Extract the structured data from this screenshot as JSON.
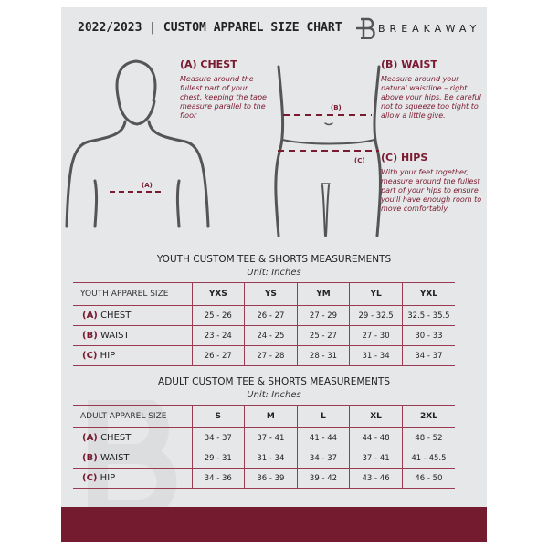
{
  "header": {
    "title": "2022/2023 | CUSTOM APPAREL SIZE CHART",
    "brand": "BREAKAWAY"
  },
  "guide": {
    "chest": {
      "heading": "(A) CHEST",
      "text": "Measure around the fullest part of your chest, keeping the tape measure parallel to the floor",
      "marker": "(A)"
    },
    "waist": {
      "heading": "(B) WAIST",
      "text": "Measure around your natural waistline – right above your hips. Be careful not to squeeze too tight to allow a little give.",
      "marker": "(B)"
    },
    "hips": {
      "heading": "(C) HIPS",
      "text": "With your feet together, measure around the fullest part of your hips to ensure you'll have enough room to move comfortably.",
      "marker": "(C)"
    }
  },
  "youth": {
    "title": "YOUTH CUSTOM TEE & SHORTS MEASUREMENTS",
    "unit": "Unit: Inches",
    "header": "YOUTH APPAREL SIZE",
    "sizes": [
      "YXS",
      "YS",
      "YM",
      "YL",
      "YXL"
    ],
    "rows": [
      {
        "code": "(A)",
        "name": "CHEST",
        "values": [
          "25 - 26",
          "26 - 27",
          "27 - 29",
          "29 - 32.5",
          "32.5 - 35.5"
        ]
      },
      {
        "code": "(B)",
        "name": "WAIST",
        "values": [
          "23 - 24",
          "24 - 25",
          "25 - 27",
          "27 - 30",
          "30 - 33"
        ]
      },
      {
        "code": "(C)",
        "name": "HIP",
        "values": [
          "26 - 27",
          "27 - 28",
          "28 - 31",
          "31 - 34",
          "34 - 37"
        ]
      }
    ]
  },
  "adult": {
    "title": "ADULT CUSTOM TEE & SHORTS MEASUREMENTS",
    "unit": "Unit: Inches",
    "header": "ADULT APPAREL SIZE",
    "sizes": [
      "S",
      "M",
      "L",
      "XL",
      "2XL"
    ],
    "rows": [
      {
        "code": "(A)",
        "name": "CHEST",
        "values": [
          "34 - 37",
          "37 - 41",
          "41 - 44",
          "44 - 48",
          "48 - 52"
        ]
      },
      {
        "code": "(B)",
        "name": "WAIST",
        "values": [
          "29 - 31",
          "31 - 34",
          "34 - 37",
          "37 - 41",
          "41 - 45.5"
        ]
      },
      {
        "code": "(C)",
        "name": "HIP",
        "values": [
          "34 - 36",
          "36 - 39",
          "39 - 42",
          "43 - 46",
          "46 - 50"
        ]
      }
    ]
  },
  "colors": {
    "accent": "#751b2f",
    "background": "#e6e7e9"
  }
}
